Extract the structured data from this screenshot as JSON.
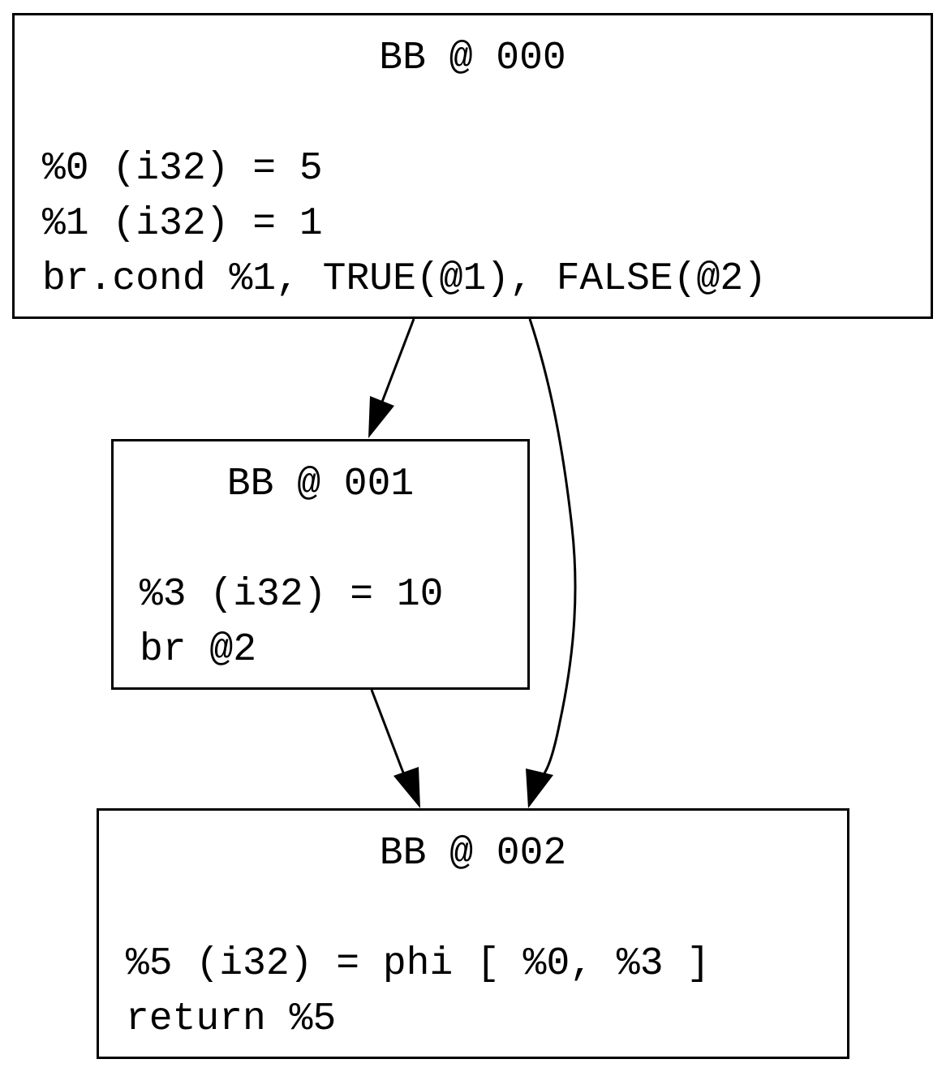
{
  "blocks": [
    {
      "title": "BB @ 000",
      "instructions": [
        "%0 (i32) = 5",
        "%1 (i32) = 1",
        "br.cond %1, TRUE(@1), FALSE(@2)"
      ]
    },
    {
      "title": "BB @ 001",
      "instructions": [
        "%3 (i32) = 10",
        "br @2"
      ]
    },
    {
      "title": "BB @ 002",
      "instructions": [
        "%5 (i32) = phi [ %0, %3 ]",
        "return %5"
      ]
    }
  ],
  "edges": [
    {
      "from": "BB @ 000",
      "to": "BB @ 001"
    },
    {
      "from": "BB @ 000",
      "to": "BB @ 002"
    },
    {
      "from": "BB @ 001",
      "to": "BB @ 002"
    }
  ]
}
